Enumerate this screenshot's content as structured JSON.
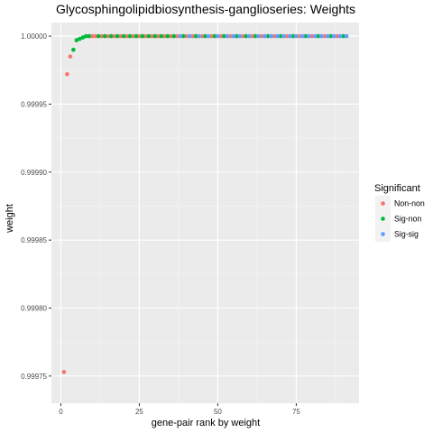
{
  "chart_data": {
    "type": "scatter",
    "title": "Glycosphingolipidbiosynthesis-ganglioseries: Weights",
    "xlabel": "gene-pair rank by weight",
    "ylabel": "weight",
    "xlim": [
      -3,
      95
    ],
    "ylim": [
      0.99973,
      1.00001
    ],
    "x_ticks": [
      0,
      25,
      50,
      75
    ],
    "x_tick_labels": [
      "0",
      "25",
      "50",
      "75"
    ],
    "y_ticks": [
      0.99975,
      0.9998,
      0.99985,
      0.9999,
      0.99995,
      1.0
    ],
    "y_tick_labels": [
      "0.99975",
      "0.99980",
      "0.99985",
      "0.99990",
      "0.99995",
      "1.00000"
    ],
    "grid": true,
    "background": "#ebebeb",
    "legend": {
      "title": "Significant",
      "placement": "right",
      "entries": [
        "Non-non",
        "Sig-non",
        "Sig-sig"
      ]
    },
    "colors": {
      "Non-non": "#f8766d",
      "Sig-non": "#00ba38",
      "Sig-sig": "#619cff"
    },
    "series": [
      {
        "name": "Non-non",
        "points": [
          [
            1,
            0.999753
          ],
          [
            2,
            0.999972
          ],
          [
            3,
            0.999985
          ],
          [
            10,
            1.0
          ],
          [
            11,
            1.0
          ],
          [
            13,
            1.0
          ],
          [
            15,
            1.0
          ],
          [
            17,
            1.0
          ],
          [
            19,
            1.0
          ],
          [
            21,
            1.0
          ],
          [
            23,
            1.0
          ],
          [
            25,
            1.0
          ],
          [
            27,
            1.0
          ],
          [
            29,
            1.0
          ],
          [
            31,
            1.0
          ],
          [
            33,
            1.0
          ],
          [
            35,
            1.0
          ],
          [
            37,
            1.0
          ],
          [
            40,
            1.0
          ],
          [
            42,
            1.0
          ],
          [
            45,
            1.0
          ],
          [
            48,
            1.0
          ],
          [
            51,
            1.0
          ],
          [
            54,
            1.0
          ],
          [
            58,
            1.0
          ],
          [
            61,
            1.0
          ],
          [
            64,
            1.0
          ],
          [
            68,
            1.0
          ],
          [
            72,
            1.0
          ],
          [
            76,
            1.0
          ],
          [
            80,
            1.0
          ],
          [
            84,
            1.0
          ],
          [
            88,
            1.0
          ]
        ]
      },
      {
        "name": "Sig-non",
        "points": [
          [
            4,
            0.99999
          ],
          [
            5,
            0.999997
          ],
          [
            6,
            0.999998
          ],
          [
            7,
            0.999999
          ],
          [
            8,
            1.0
          ],
          [
            9,
            1.0
          ],
          [
            12,
            1.0
          ],
          [
            14,
            1.0
          ],
          [
            16,
            1.0
          ],
          [
            18,
            1.0
          ],
          [
            20,
            1.0
          ],
          [
            22,
            1.0
          ],
          [
            24,
            1.0
          ],
          [
            26,
            1.0
          ],
          [
            28,
            1.0
          ],
          [
            30,
            1.0
          ],
          [
            32,
            1.0
          ],
          [
            34,
            1.0
          ],
          [
            36,
            1.0
          ],
          [
            39,
            1.0
          ],
          [
            43,
            1.0
          ],
          [
            46,
            1.0
          ],
          [
            49,
            1.0
          ],
          [
            52,
            1.0
          ],
          [
            56,
            1.0
          ],
          [
            59,
            1.0
          ],
          [
            62,
            1.0
          ],
          [
            66,
            1.0
          ],
          [
            70,
            1.0
          ],
          [
            74,
            1.0
          ],
          [
            78,
            1.0
          ],
          [
            82,
            1.0
          ],
          [
            86,
            1.0
          ],
          [
            90,
            1.0
          ]
        ]
      },
      {
        "name": "Sig-sig",
        "points": [
          [
            38,
            1.0
          ],
          [
            41,
            1.0
          ],
          [
            44,
            1.0
          ],
          [
            47,
            1.0
          ],
          [
            50,
            1.0
          ],
          [
            53,
            1.0
          ],
          [
            55,
            1.0
          ],
          [
            57,
            1.0
          ],
          [
            60,
            1.0
          ],
          [
            63,
            1.0
          ],
          [
            65,
            1.0
          ],
          [
            67,
            1.0
          ],
          [
            69,
            1.0
          ],
          [
            71,
            1.0
          ],
          [
            73,
            1.0
          ],
          [
            75,
            1.0
          ],
          [
            77,
            1.0
          ],
          [
            79,
            1.0
          ],
          [
            81,
            1.0
          ],
          [
            83,
            1.0
          ],
          [
            85,
            1.0
          ],
          [
            87,
            1.0
          ],
          [
            89,
            1.0
          ],
          [
            91,
            1.0
          ]
        ]
      }
    ]
  }
}
